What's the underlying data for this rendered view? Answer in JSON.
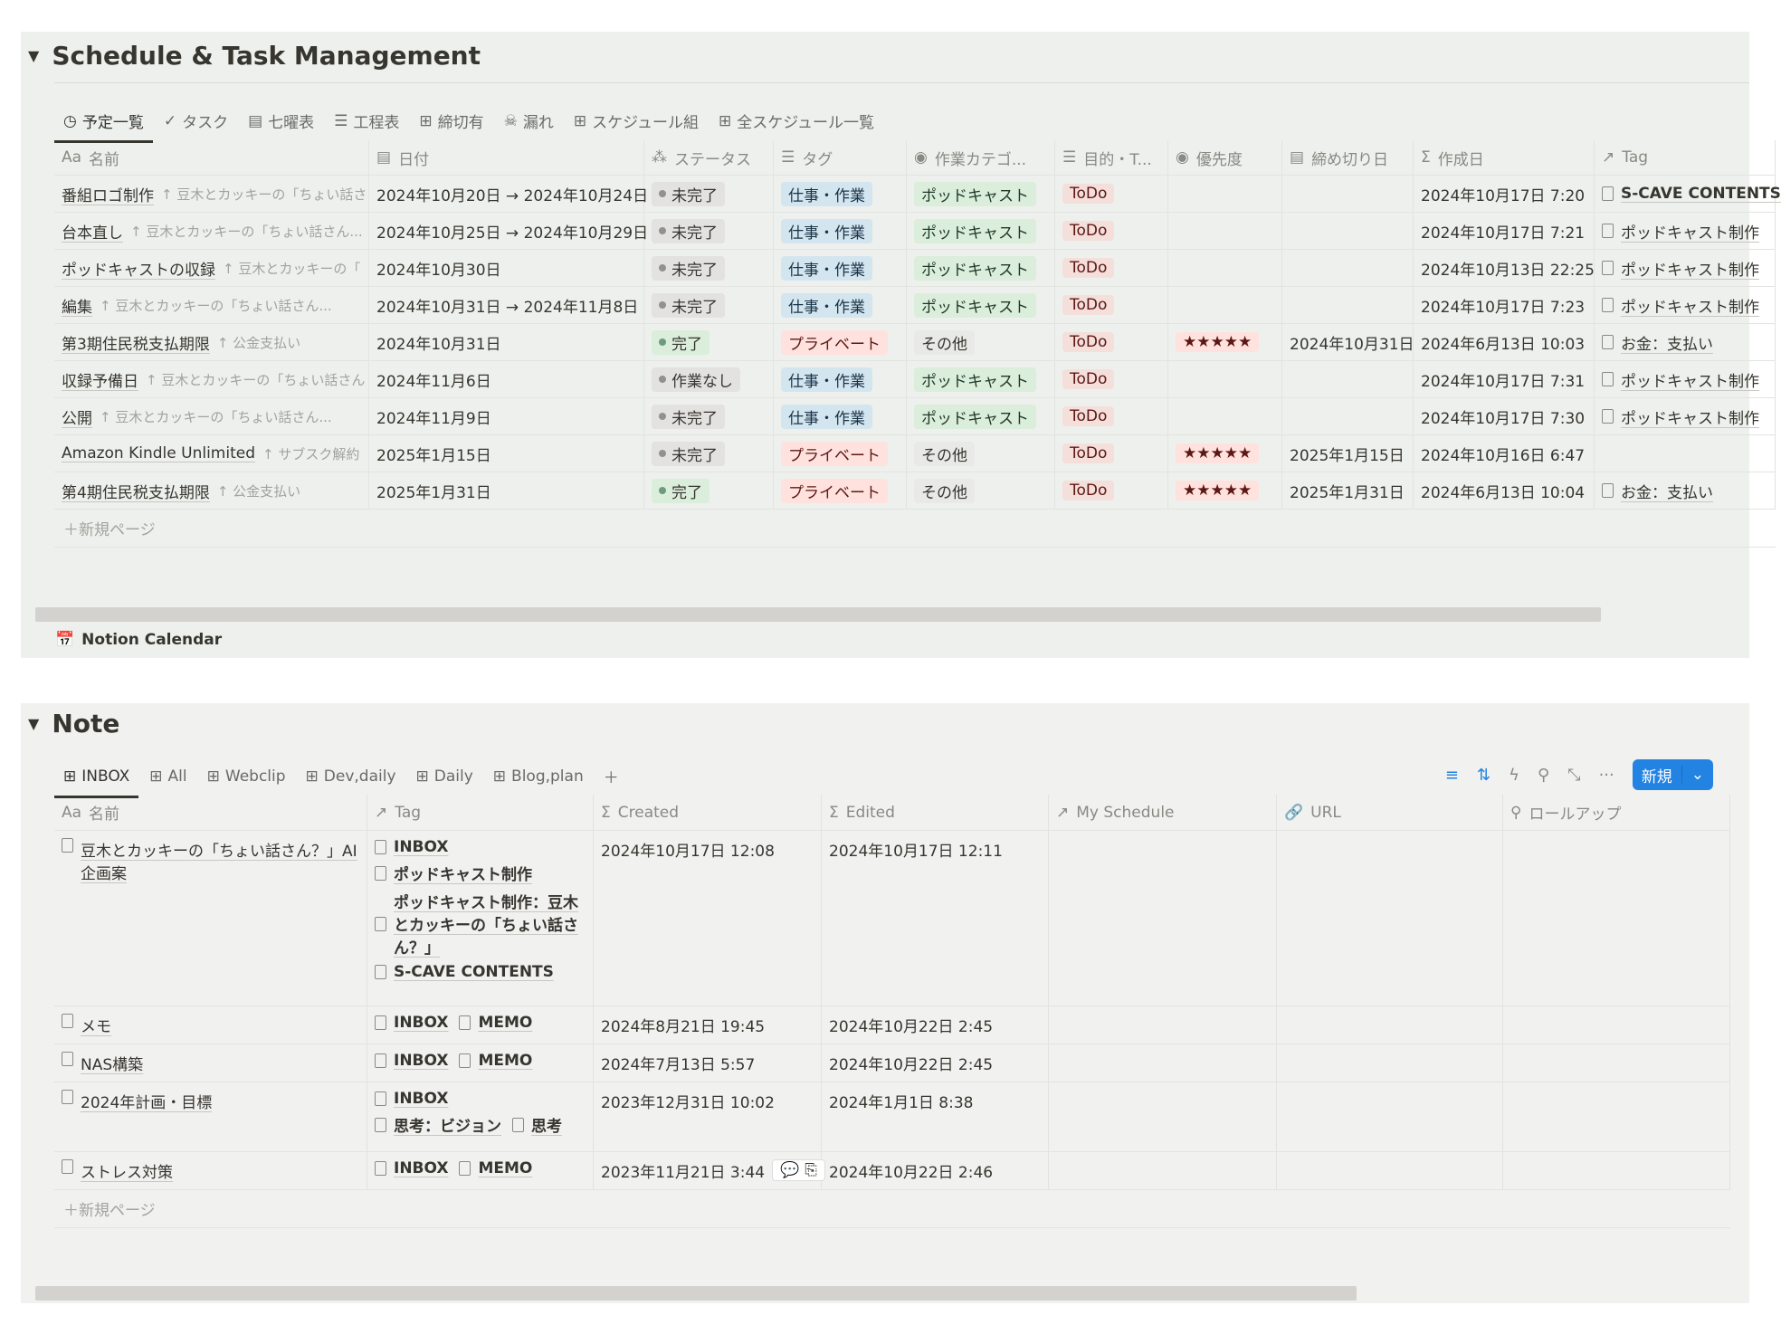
{
  "schedule": {
    "title": "Schedule & Task Management",
    "tabs": [
      {
        "icon": "clock-icon",
        "g": "◷",
        "label": "予定一覧"
      },
      {
        "icon": "check-icon",
        "g": "✓",
        "label": "タスク"
      },
      {
        "icon": "calendar-icon",
        "g": "▤",
        "label": "七曜表"
      },
      {
        "icon": "timeline-icon",
        "g": "☰",
        "label": "工程表"
      },
      {
        "icon": "table-icon",
        "g": "⊞",
        "label": "締切有"
      },
      {
        "icon": "skull-icon",
        "g": "☠",
        "label": "漏れ"
      },
      {
        "icon": "table-icon",
        "g": "⊞",
        "label": "スケジュール組"
      },
      {
        "icon": "table-icon",
        "g": "⊞",
        "label": "全スケジュール一覧"
      }
    ],
    "columns": [
      {
        "icon": "Aa",
        "label": "名前"
      },
      {
        "icon": "▤",
        "label": "日付"
      },
      {
        "icon": "⁂",
        "label": "ステータス"
      },
      {
        "icon": "☰",
        "label": "タグ"
      },
      {
        "icon": "◉",
        "label": "作業カテゴ..."
      },
      {
        "icon": "☰",
        "label": "目的・T..."
      },
      {
        "icon": "◉",
        "label": "優先度"
      },
      {
        "icon": "▤",
        "label": "締め切り日"
      },
      {
        "icon": "Σ",
        "label": "作成日"
      },
      {
        "icon": "↗",
        "label": "Tag"
      }
    ],
    "rows": [
      {
        "name": "番組ロゴ制作",
        "parent": "豆木とカッキーの「ちょい話さ",
        "date": "2024年10月20日 → 2024年10月24日",
        "status": "未完了",
        "tag": "仕事・作業",
        "cat": "ポッドキャスト",
        "purpose": "ToDo",
        "priority": "",
        "deadline": "",
        "created": "2024年10月17日 7:20",
        "rel": "S-CAVE CONTENTS",
        "relBold": true
      },
      {
        "name": "台本直し",
        "parent": "豆木とカッキーの「ちょい話さん...",
        "date": "2024年10月25日 → 2024年10月29日",
        "status": "未完了",
        "tag": "仕事・作業",
        "cat": "ポッドキャスト",
        "purpose": "ToDo",
        "priority": "",
        "deadline": "",
        "created": "2024年10月17日 7:21",
        "rel": "ポッドキャスト制作"
      },
      {
        "name": "ポッドキャストの収録",
        "parent": "豆木とカッキーの「",
        "date": "2024年10月30日",
        "status": "未完了",
        "tag": "仕事・作業",
        "cat": "ポッドキャスト",
        "purpose": "ToDo",
        "priority": "",
        "deadline": "",
        "created": "2024年10月13日 22:25",
        "rel": "ポッドキャスト制作"
      },
      {
        "name": "編集",
        "parent": "豆木とカッキーの「ちょい話さん...",
        "date": "2024年10月31日 → 2024年11月8日",
        "status": "未完了",
        "tag": "仕事・作業",
        "cat": "ポッドキャスト",
        "purpose": "ToDo",
        "priority": "",
        "deadline": "",
        "created": "2024年10月17日 7:23",
        "rel": "ポッドキャスト制作"
      },
      {
        "name": "第3期住民税支払期限",
        "parent": "公金支払い",
        "date": "2024年10月31日",
        "status": "完了",
        "tag": "プライベート",
        "cat": "その他",
        "purpose": "ToDo",
        "priority": "★★★★★",
        "deadline": "2024年10月31日",
        "created": "2024年6月13日 10:03",
        "rel": "お金：支払い"
      },
      {
        "name": "収録予備日",
        "parent": "豆木とカッキーの「ちょい話さん",
        "date": "2024年11月6日",
        "status": "作業なし",
        "tag": "仕事・作業",
        "cat": "ポッドキャスト",
        "purpose": "ToDo",
        "priority": "",
        "deadline": "",
        "created": "2024年10月17日 7:31",
        "rel": "ポッドキャスト制作"
      },
      {
        "name": "公開",
        "parent": "豆木とカッキーの「ちょい話さん...",
        "date": "2024年11月9日",
        "status": "未完了",
        "tag": "仕事・作業",
        "cat": "ポッドキャスト",
        "purpose": "ToDo",
        "priority": "",
        "deadline": "",
        "created": "2024年10月17日 7:30",
        "rel": "ポッドキャスト制作"
      },
      {
        "name": "Amazon Kindle Unlimited",
        "parent": "サブスク解約",
        "date": "2025年1月15日",
        "status": "未完了",
        "tag": "プライベート",
        "cat": "その他",
        "purpose": "ToDo",
        "priority": "★★★★★",
        "deadline": "2025年1月15日",
        "created": "2024年10月16日 6:47",
        "rel": ""
      },
      {
        "name": "第4期住民税支払期限",
        "parent": "公金支払い",
        "date": "2025年1月31日",
        "status": "完了",
        "tag": "プライベート",
        "cat": "その他",
        "purpose": "ToDo",
        "priority": "★★★★★",
        "deadline": "2025年1月31日",
        "created": "2024年6月13日 10:04",
        "rel": "お金：支払い"
      }
    ],
    "new_page": "新規ページ",
    "calendar_link": "Notion Calendar"
  },
  "note": {
    "title": "Note",
    "tabs": [
      "INBOX",
      "All",
      "Webclip",
      "Dev,daily",
      "Daily",
      "Blog,plan"
    ],
    "new_button": "新規",
    "columns": [
      {
        "icon": "Aa",
        "label": "名前"
      },
      {
        "icon": "↗",
        "label": "Tag"
      },
      {
        "icon": "Σ",
        "label": "Created"
      },
      {
        "icon": "Σ",
        "label": "Edited"
      },
      {
        "icon": "↗",
        "label": "My Schedule"
      },
      {
        "icon": "🔗",
        "label": "URL"
      },
      {
        "icon": "⚲",
        "label": "ロールアップ"
      }
    ],
    "rows": [
      {
        "name": "豆木とカッキーの「ちょい話さん？」AI企画案",
        "tags": [
          "INBOX",
          "ポッドキャスト制作",
          "ポッドキャスト制作：豆木とカッキーの「ちょい話さん？」",
          "S-CAVE CONTENTS"
        ],
        "created": "2024年10月17日 12:08",
        "edited": "2024年10月17日 12:11",
        "h": 194
      },
      {
        "name": "メモ",
        "tags": [
          "INBOX",
          "MEMO"
        ],
        "created": "2024年8月21日 19:45",
        "edited": "2024年10月22日 2:45",
        "h": 42
      },
      {
        "name": "NAS構築",
        "tags": [
          "INBOX",
          "MEMO"
        ],
        "created": "2024年7月13日 5:57",
        "edited": "2024年10月22日 2:45",
        "h": 42
      },
      {
        "name": "2024年計画・目標",
        "tags": [
          "INBOX",
          "思考：ビジョン",
          "思考"
        ],
        "created": "2023年12月31日 10:02",
        "edited": "2024年1月1日 8:38",
        "h": 77
      },
      {
        "name": "ストレス対策",
        "tags": [
          "INBOX",
          "MEMO"
        ],
        "created": "2023年11月21日 3:44",
        "edited": "2024年10月22日 2:46",
        "h": 42,
        "hover": true
      }
    ],
    "new_page": "新規ページ"
  },
  "colors": {
    "accent": "#2383e2"
  }
}
